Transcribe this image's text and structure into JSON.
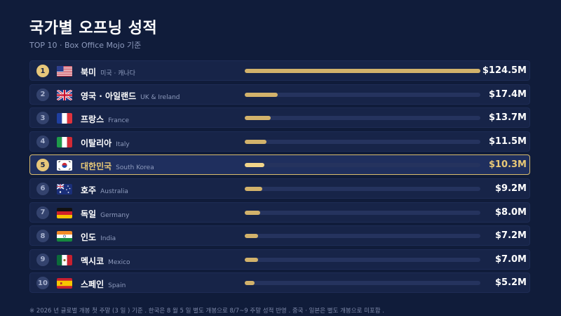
{
  "header": {
    "title": "국가별 오프닝 성적",
    "subtitle": "TOP 10 · Box Office Mojo 기준"
  },
  "footnote": "※ 2026 년 글로벌 개봉 첫 주말 (3 일 ) 기준 . 한국은 8 월 5 일 별도 개봉으로 8/7~9 주말 성적 반영 . 중국 · 일본은 별도 개봉으로 미포함 .",
  "colors": {
    "background": "#101c3a",
    "bar": "#d2b26b",
    "highlight": "#e8c877",
    "track": "#25335e"
  },
  "chart_data": {
    "type": "bar",
    "orientation": "horizontal",
    "unit": "$M",
    "highlight_index": 4,
    "categories": [
      "북미",
      "영국 · 아일랜드",
      "프랑스",
      "이탈리아",
      "대한민국",
      "호주",
      "독일",
      "인도",
      "멕시코",
      "스페인"
    ],
    "values": [
      124.5,
      17.4,
      13.7,
      11.5,
      10.3,
      9.2,
      8.0,
      7.2,
      7.0,
      5.2
    ],
    "rows": [
      {
        "rank": "1",
        "name": "북미",
        "eng": "미국 · 캐나다",
        "value_label": "$124.5M",
        "flag": "us-flag-icon"
      },
      {
        "rank": "2",
        "name": "영국 · 아일랜드",
        "eng": "UK & Ireland",
        "value_label": "$17.4M",
        "flag": "uk-flag-icon"
      },
      {
        "rank": "3",
        "name": "프랑스",
        "eng": "France",
        "value_label": "$13.7M",
        "flag": "france-flag-icon"
      },
      {
        "rank": "4",
        "name": "이탈리아",
        "eng": "Italy",
        "value_label": "$11.5M",
        "flag": "italy-flag-icon"
      },
      {
        "rank": "5",
        "name": "대한민국",
        "eng": "South Korea",
        "value_label": "$10.3M",
        "flag": "korea-flag-icon"
      },
      {
        "rank": "6",
        "name": "호주",
        "eng": "Australia",
        "value_label": "$9.2M",
        "flag": "australia-flag-icon"
      },
      {
        "rank": "7",
        "name": "독일",
        "eng": "Germany",
        "value_label": "$8.0M",
        "flag": "germany-flag-icon"
      },
      {
        "rank": "8",
        "name": "인도",
        "eng": "India",
        "value_label": "$7.2M",
        "flag": "india-flag-icon"
      },
      {
        "rank": "9",
        "name": "멕시코",
        "eng": "Mexico",
        "value_label": "$7.0M",
        "flag": "mexico-flag-icon"
      },
      {
        "rank": "10",
        "name": "스페인",
        "eng": "Spain",
        "value_label": "$5.2M",
        "flag": "spain-flag-icon"
      }
    ]
  }
}
